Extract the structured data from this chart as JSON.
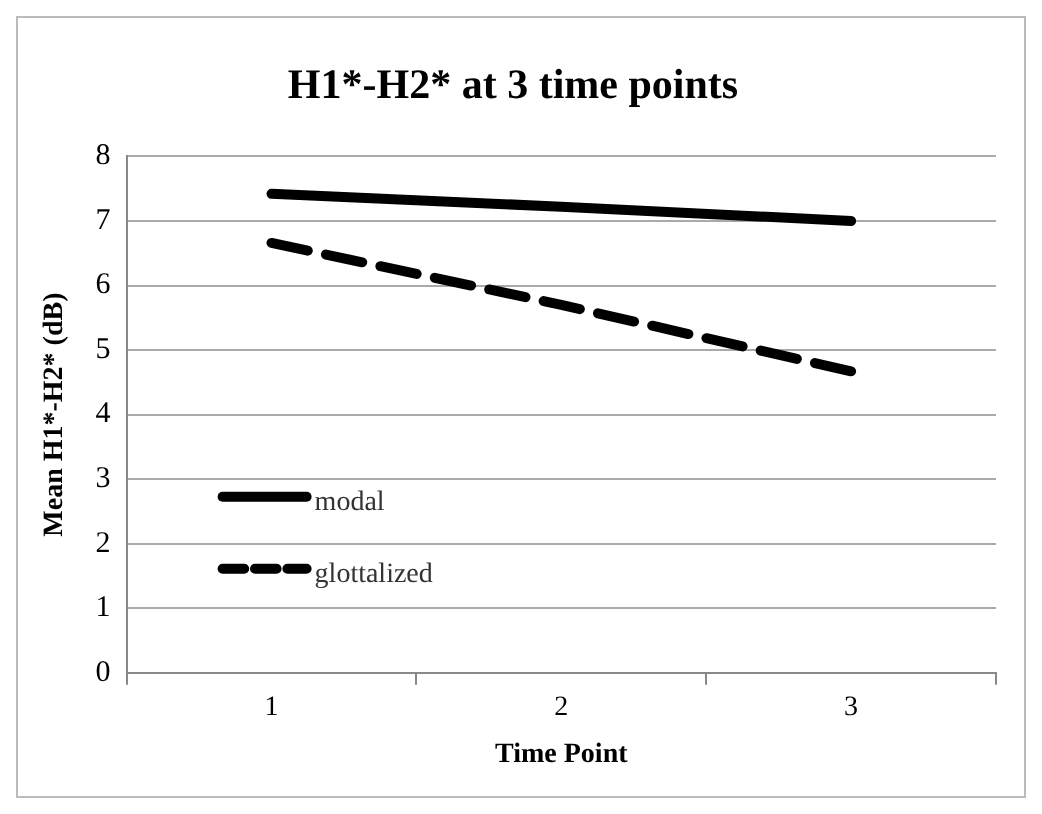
{
  "chart_data": {
    "type": "line",
    "title": "H1*-H2* at 3 time points",
    "xlabel": "Time Point",
    "ylabel": "Mean H1*-H2* (dB)",
    "categories": [
      "1",
      "2",
      "3"
    ],
    "series": [
      {
        "name": "modal",
        "color": "#000000",
        "values": [
          7.42,
          7.22,
          7.0
        ],
        "line_style": "solid"
      },
      {
        "name": "glottalized",
        "color": "#000000",
        "values": [
          6.66,
          5.7,
          4.67
        ],
        "line_style": "dashed"
      }
    ],
    "ylim": [
      0,
      8
    ],
    "yticks": [
      0,
      1,
      2,
      3,
      4,
      5,
      6,
      7,
      8
    ],
    "grid": "y",
    "legend": "bottom left",
    "marker": "none"
  }
}
